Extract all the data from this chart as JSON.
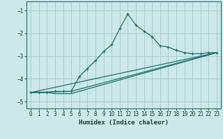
{
  "xlabel": "Humidex (Indice chaleur)",
  "bg_color": "#cce8e8",
  "grid_color": "#aacece",
  "line_color": "#1e7070",
  "xlim": [
    -0.5,
    23.5
  ],
  "ylim": [
    -5.3,
    -0.6
  ],
  "yticks": [
    -5,
    -4,
    -3,
    -2,
    -1
  ],
  "xticks": [
    0,
    1,
    2,
    3,
    4,
    5,
    6,
    7,
    8,
    9,
    10,
    11,
    12,
    13,
    14,
    15,
    16,
    17,
    18,
    19,
    20,
    21,
    22,
    23
  ],
  "series": [
    {
      "x": [
        0,
        1,
        2,
        3,
        4,
        5,
        6,
        7,
        8,
        9,
        10,
        11,
        12,
        13,
        14,
        15,
        16,
        17,
        18,
        19,
        20,
        21,
        22,
        23
      ],
      "y": [
        -4.6,
        -4.6,
        -4.6,
        -4.55,
        -4.55,
        -4.55,
        -3.9,
        -3.55,
        -3.2,
        -2.8,
        -2.5,
        -1.8,
        -1.15,
        -1.65,
        -1.9,
        -2.15,
        -2.55,
        -2.6,
        -2.75,
        -2.85,
        -2.9,
        -2.9,
        -2.85,
        -2.85
      ],
      "marker": "+"
    },
    {
      "x": [
        0,
        1,
        2,
        3,
        4,
        5,
        23
      ],
      "y": [
        -4.6,
        -4.6,
        -4.6,
        -4.65,
        -4.65,
        -4.65,
        -2.85
      ],
      "marker": null
    },
    {
      "x": [
        0,
        23
      ],
      "y": [
        -4.6,
        -2.85
      ],
      "marker": null
    },
    {
      "x": [
        0,
        5,
        23
      ],
      "y": [
        -4.6,
        -4.55,
        -2.85
      ],
      "marker": null
    }
  ]
}
